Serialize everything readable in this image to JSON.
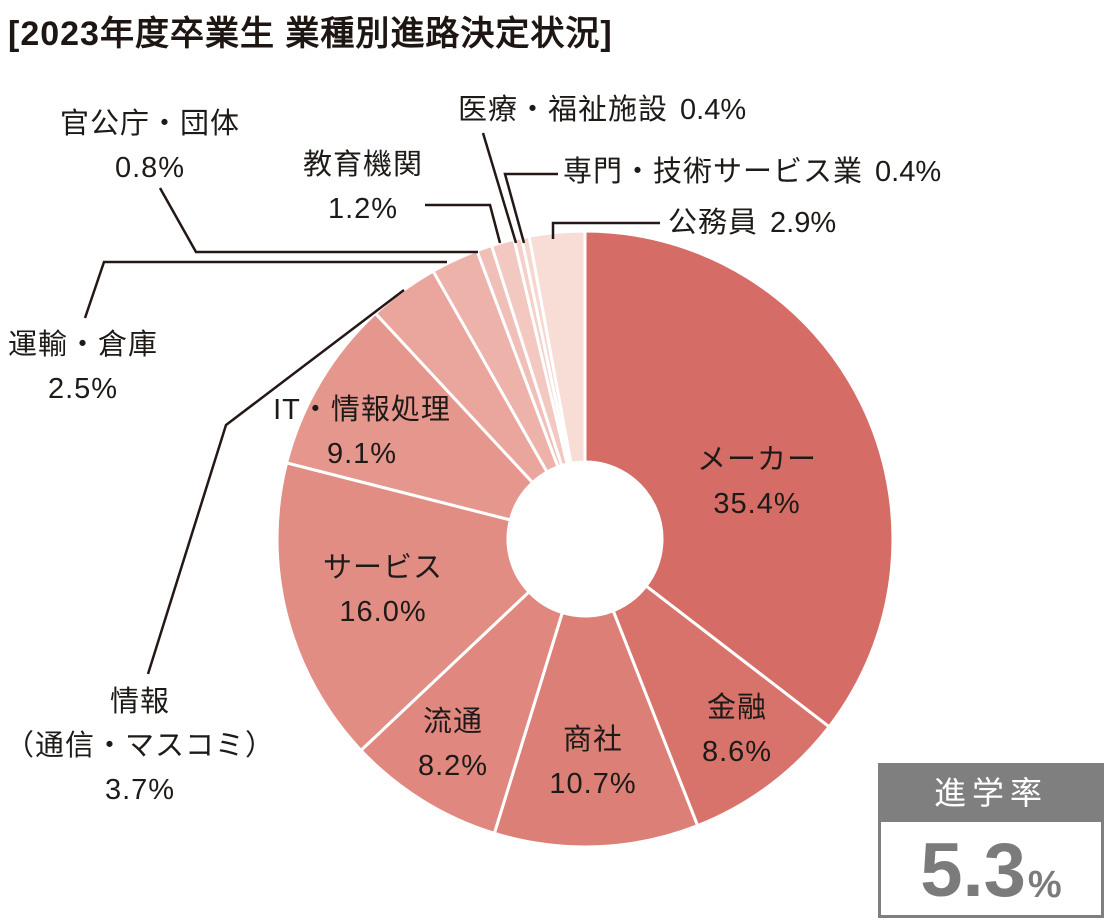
{
  "title": "[2023年度卒業生 業種別進路決定状況]",
  "chart_data": {
    "type": "pie",
    "title": "2023年度卒業生 業種別進路決定状況",
    "donut": true,
    "start_angle_deg": 0,
    "direction": "clockwise",
    "total_pct": 99.9,
    "slices": [
      {
        "name": "メーカー",
        "value": 35.4,
        "pct_text": "35.4%",
        "color": "#D56C65"
      },
      {
        "name": "金融",
        "value": 8.6,
        "pct_text": "8.6%",
        "color": "#D8736B"
      },
      {
        "name": "商社",
        "value": 10.7,
        "pct_text": "10.7%",
        "color": "#DC7F77"
      },
      {
        "name": "流通",
        "value": 8.2,
        "pct_text": "8.2%",
        "color": "#E08880"
      },
      {
        "name": "サービス",
        "value": 16.0,
        "pct_text": "16.0%",
        "color": "#E28D84"
      },
      {
        "name": "IT・情報処理",
        "value": 9.1,
        "pct_text": "9.1%",
        "color": "#E5968D"
      },
      {
        "name": "情報（通信・マスコミ）",
        "name_line1": "情報",
        "name_line2": "（通信・マスコミ）",
        "value": 3.7,
        "pct_text": "3.7%",
        "color": "#EAA69D"
      },
      {
        "name": "運輸・倉庫",
        "value": 2.5,
        "pct_text": "2.5%",
        "color": "#EDB2AA"
      },
      {
        "name": "官公庁・団体",
        "value": 0.8,
        "pct_text": "0.8%",
        "color": "#F0BFB7"
      },
      {
        "name": "教育機関",
        "value": 1.2,
        "pct_text": "1.2%",
        "color": "#F2C8C0"
      },
      {
        "name": "医療・福祉施設",
        "value": 0.4,
        "pct_text": "0.4%",
        "color": "#F4D0C9"
      },
      {
        "name": "専門・技術サービス業",
        "value": 0.4,
        "pct_text": "0.4%",
        "color": "#F5D7D0"
      },
      {
        "name": "公務員",
        "value": 2.9,
        "pct_text": "2.9%",
        "color": "#F7DDD6"
      }
    ]
  },
  "shingakuritsu": {
    "label": "進学率",
    "value": "5.3",
    "unit": "%",
    "header_bg": "#7F7F7F",
    "value_color": "#7B7B7B",
    "border_color": "#7F7F7F"
  },
  "colors": {
    "background": "#FFFFFF",
    "text": "#1E1A17",
    "leader_line": "#231815"
  }
}
